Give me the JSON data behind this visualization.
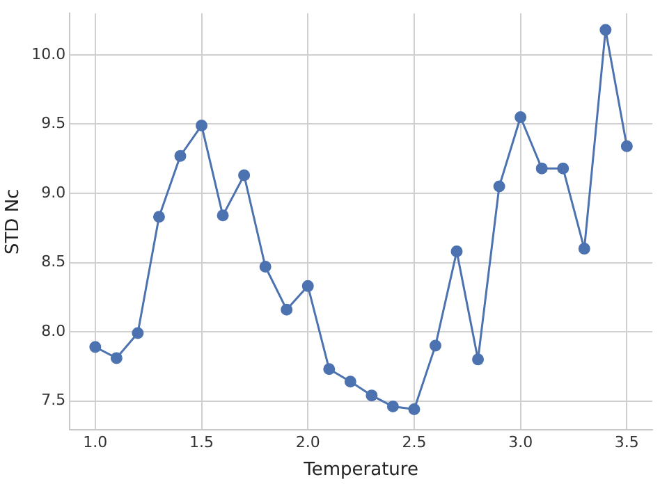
{
  "chart_data": {
    "type": "line",
    "xlabel": "Temperature",
    "ylabel": "STD Nc",
    "x": [
      1.0,
      1.1,
      1.2,
      1.3,
      1.4,
      1.5,
      1.6,
      1.7,
      1.8,
      1.9,
      2.0,
      2.1,
      2.2,
      2.3,
      2.4,
      2.5,
      2.6,
      2.7,
      2.8,
      2.9,
      3.0,
      3.1,
      3.2,
      3.3,
      3.4,
      3.5
    ],
    "series": [
      {
        "color": "#4c72b0",
        "values": [
          7.89,
          7.81,
          7.99,
          8.83,
          9.27,
          9.49,
          8.84,
          9.13,
          8.47,
          8.16,
          8.33,
          7.73,
          7.64,
          7.54,
          7.46,
          7.44,
          7.9,
          8.58,
          7.8,
          9.05,
          9.55,
          9.18,
          9.18,
          8.6,
          10.18,
          9.34
        ]
      }
    ],
    "xlim": [
      0.88,
      3.62
    ],
    "xticks": [
      {
        "value": 1,
        "label": "1.0"
      },
      1.5,
      {
        "value": 2,
        "label": "2.0"
      },
      2.5,
      {
        "value": 3,
        "label": "3.0"
      },
      3.5
    ],
    "ylim": [
      7.29,
      10.3
    ],
    "yticks": [
      7.5,
      {
        "value": 8,
        "label": "8.0"
      },
      8.5,
      {
        "value": 9,
        "label": "9.0"
      },
      9.5,
      {
        "value": 10,
        "label": "10.0"
      }
    ],
    "grid": true,
    "marker": "circle",
    "line_style": "solid"
  }
}
